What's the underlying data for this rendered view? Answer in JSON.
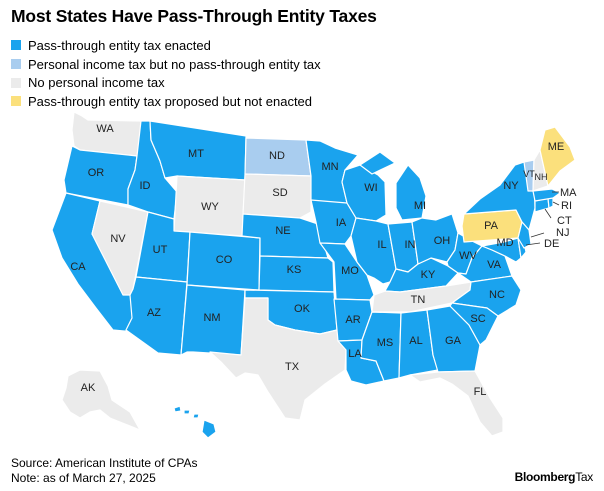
{
  "title": "Most States Have Pass-Through Entity Taxes",
  "colors": {
    "enacted": "#1aa3ee",
    "income_no_ptet": "#a9cdef",
    "no_income_tax": "#ebebeb",
    "proposed": "#fbe07c"
  },
  "legend": [
    {
      "key": "enacted",
      "label": "Pass-through entity tax enacted"
    },
    {
      "key": "income_no_ptet",
      "label": "Personal income tax but no pass-through entity tax"
    },
    {
      "key": "no_income_tax",
      "label": "No personal income tax"
    },
    {
      "key": "proposed",
      "label": "Pass-through entity tax proposed but not enacted"
    }
  ],
  "states": [
    {
      "abbr": "WA",
      "status": "no_income_tax"
    },
    {
      "abbr": "OR",
      "status": "enacted"
    },
    {
      "abbr": "CA",
      "status": "enacted"
    },
    {
      "abbr": "NV",
      "status": "no_income_tax"
    },
    {
      "abbr": "ID",
      "status": "enacted"
    },
    {
      "abbr": "MT",
      "status": "enacted"
    },
    {
      "abbr": "WY",
      "status": "no_income_tax"
    },
    {
      "abbr": "UT",
      "status": "enacted"
    },
    {
      "abbr": "AZ",
      "status": "enacted"
    },
    {
      "abbr": "CO",
      "status": "enacted"
    },
    {
      "abbr": "NM",
      "status": "enacted"
    },
    {
      "abbr": "ND",
      "status": "income_no_ptet"
    },
    {
      "abbr": "SD",
      "status": "no_income_tax"
    },
    {
      "abbr": "NE",
      "status": "enacted"
    },
    {
      "abbr": "KS",
      "status": "enacted"
    },
    {
      "abbr": "OK",
      "status": "enacted"
    },
    {
      "abbr": "TX",
      "status": "no_income_tax"
    },
    {
      "abbr": "MN",
      "status": "enacted"
    },
    {
      "abbr": "IA",
      "status": "enacted"
    },
    {
      "abbr": "MO",
      "status": "enacted"
    },
    {
      "abbr": "AR",
      "status": "enacted"
    },
    {
      "abbr": "LA",
      "status": "enacted"
    },
    {
      "abbr": "WI",
      "status": "enacted"
    },
    {
      "abbr": "IL",
      "status": "enacted"
    },
    {
      "abbr": "MS",
      "status": "enacted"
    },
    {
      "abbr": "MI",
      "status": "enacted"
    },
    {
      "abbr": "IN",
      "status": "enacted"
    },
    {
      "abbr": "KY",
      "status": "enacted"
    },
    {
      "abbr": "TN",
      "status": "no_income_tax"
    },
    {
      "abbr": "AL",
      "status": "enacted"
    },
    {
      "abbr": "GA",
      "status": "enacted"
    },
    {
      "abbr": "FL",
      "status": "no_income_tax"
    },
    {
      "abbr": "OH",
      "status": "enacted"
    },
    {
      "abbr": "WV",
      "status": "enacted"
    },
    {
      "abbr": "VA",
      "status": "enacted"
    },
    {
      "abbr": "NC",
      "status": "enacted"
    },
    {
      "abbr": "SC",
      "status": "enacted"
    },
    {
      "abbr": "PA",
      "status": "proposed"
    },
    {
      "abbr": "NY",
      "status": "enacted"
    },
    {
      "abbr": "MD",
      "status": "enacted"
    },
    {
      "abbr": "DE",
      "status": "enacted"
    },
    {
      "abbr": "NJ",
      "status": "enacted"
    },
    {
      "abbr": "CT",
      "status": "enacted"
    },
    {
      "abbr": "RI",
      "status": "enacted"
    },
    {
      "abbr": "MA",
      "status": "enacted"
    },
    {
      "abbr": "VT",
      "status": "income_no_ptet"
    },
    {
      "abbr": "NH",
      "status": "no_income_tax"
    },
    {
      "abbr": "ME",
      "status": "proposed"
    },
    {
      "abbr": "AK",
      "status": "no_income_tax"
    },
    {
      "abbr": "HI",
      "status": "enacted"
    }
  ],
  "footer": {
    "source": "Source: American Institute of CPAs",
    "note": "Note: as of March 27, 2025"
  },
  "brand": {
    "bold": "Bloomberg",
    "thin": "Tax"
  }
}
